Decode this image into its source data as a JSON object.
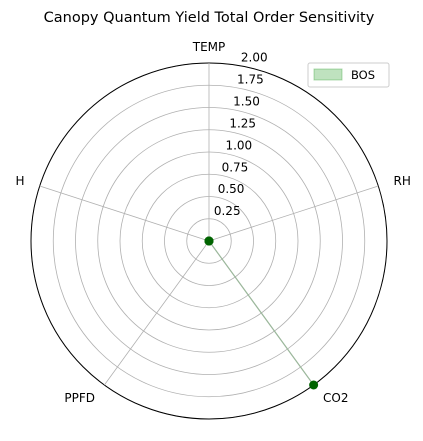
{
  "chart_data": {
    "type": "radar",
    "title": "Canopy Quantum Yield Total Order Sensitivity",
    "axes": [
      "TEMP",
      "RH",
      "CO2",
      "PPFD",
      "H"
    ],
    "r_ticks": [
      0.25,
      0.5,
      0.75,
      1.0,
      1.25,
      1.5,
      1.75,
      2.0
    ],
    "r_tick_labels": [
      "0.25",
      "0.50",
      "0.75",
      "1.00",
      "1.25",
      "1.50",
      "1.75",
      "2.00"
    ],
    "rlim": [
      0,
      2.0
    ],
    "grid": true,
    "legend_position": "top-right",
    "series": [
      {
        "name": "BOS",
        "values": [
          0.0,
          0.0,
          2.0,
          0.0,
          0.0
        ],
        "fill_color": "#2ca02c",
        "marker_color": "#006400",
        "line_color": "#9cb89c"
      }
    ]
  }
}
